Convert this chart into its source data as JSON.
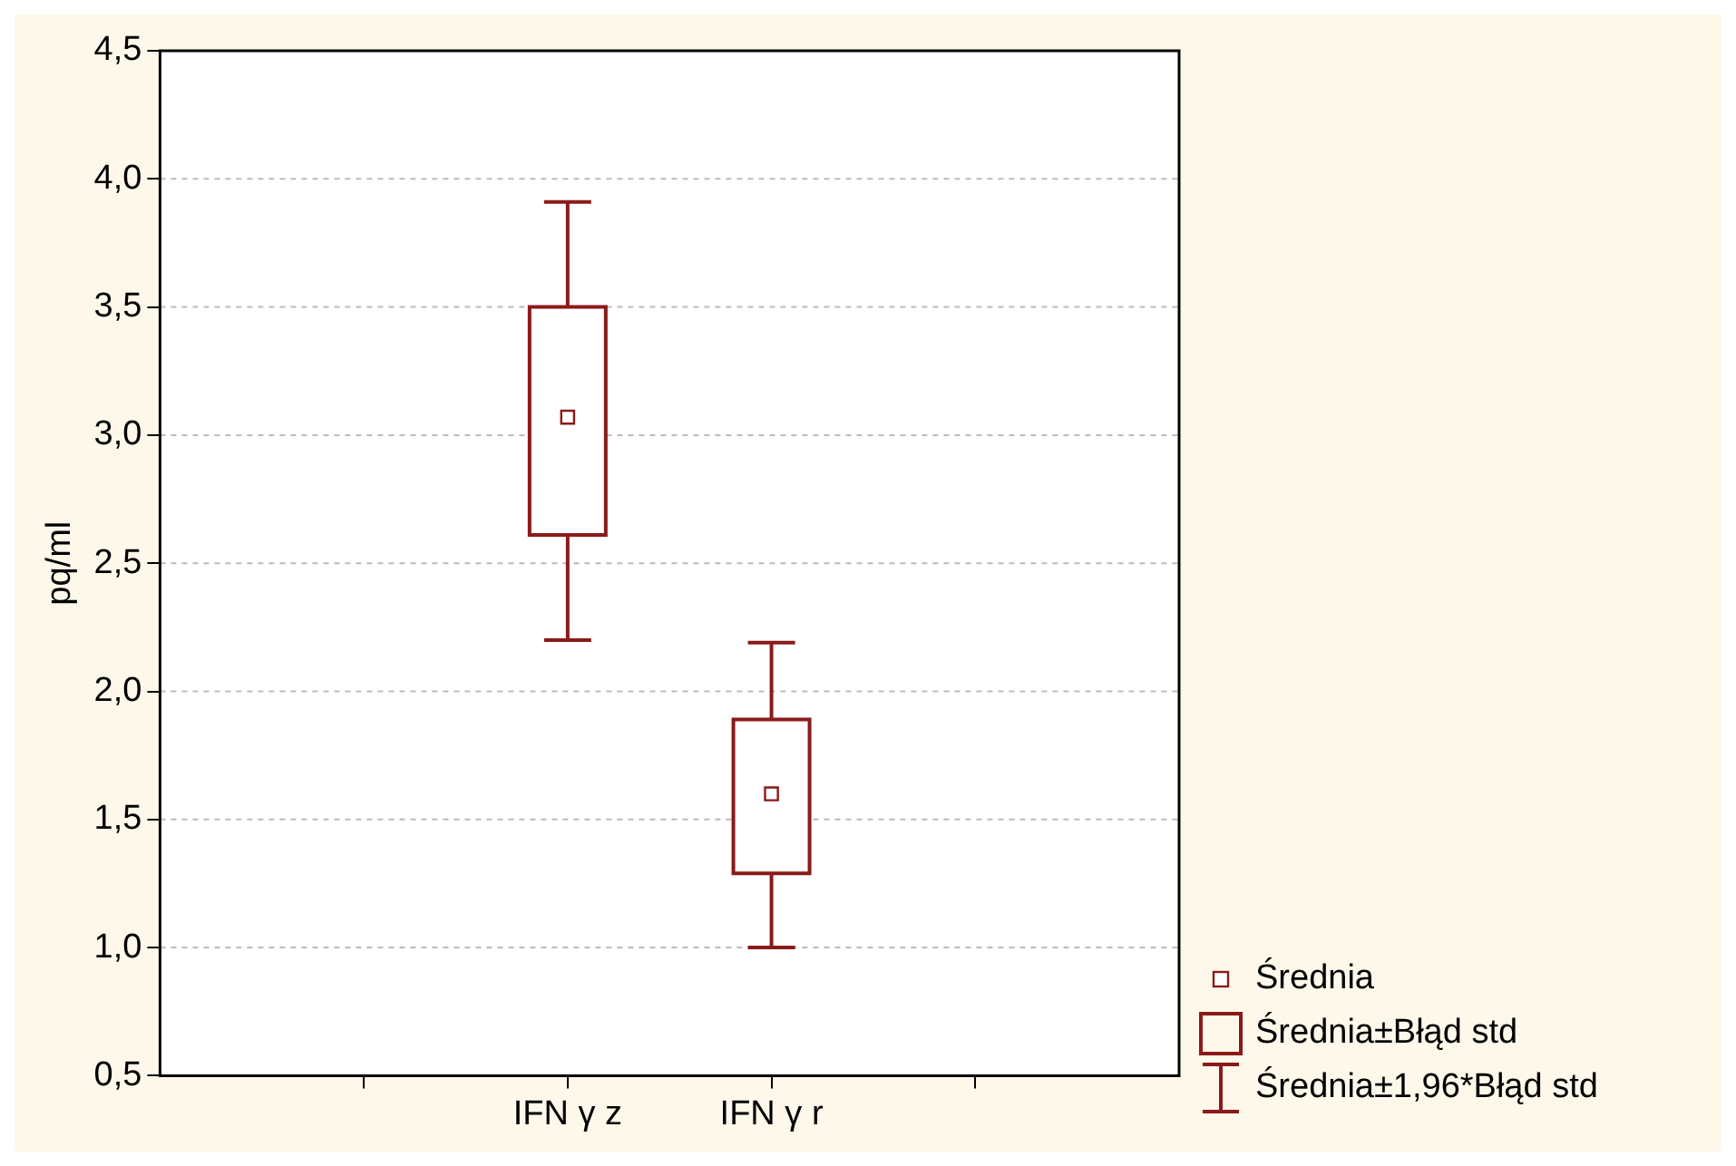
{
  "chart_data": {
    "type": "box",
    "ylabel": "pq/ml",
    "categories": [
      null,
      "IFN γ z",
      "IFN γ r",
      null
    ],
    "boxes": [
      null,
      {
        "low": 2.2,
        "q1": 2.61,
        "q3": 3.5,
        "high": 3.91,
        "mean": 3.07
      },
      {
        "low": 1.0,
        "q1": 1.29,
        "q3": 1.89,
        "high": 2.19,
        "mean": 1.6
      },
      null
    ],
    "color": "#8b1a1a",
    "ylim": [
      0.5,
      4.5
    ],
    "yticks": [
      {
        "value": 0.5,
        "label": "0,5"
      },
      {
        "value": 1.0,
        "label": "1,0"
      },
      {
        "value": 1.5,
        "label": "1,5"
      },
      {
        "value": 2.0,
        "label": "2,0"
      },
      {
        "value": 2.5,
        "label": "2,5"
      },
      {
        "value": 3.0,
        "label": "3,0"
      },
      {
        "value": 3.5,
        "label": "3,5"
      },
      {
        "value": 4.0,
        "label": "4,0"
      },
      {
        "value": 4.5,
        "label": "4,5"
      }
    ],
    "grid": "y",
    "marker": "square",
    "annotations": [
      "Średnia",
      "Średnia±Błąd std",
      "Średnia±1,96*Błąd std"
    ]
  }
}
